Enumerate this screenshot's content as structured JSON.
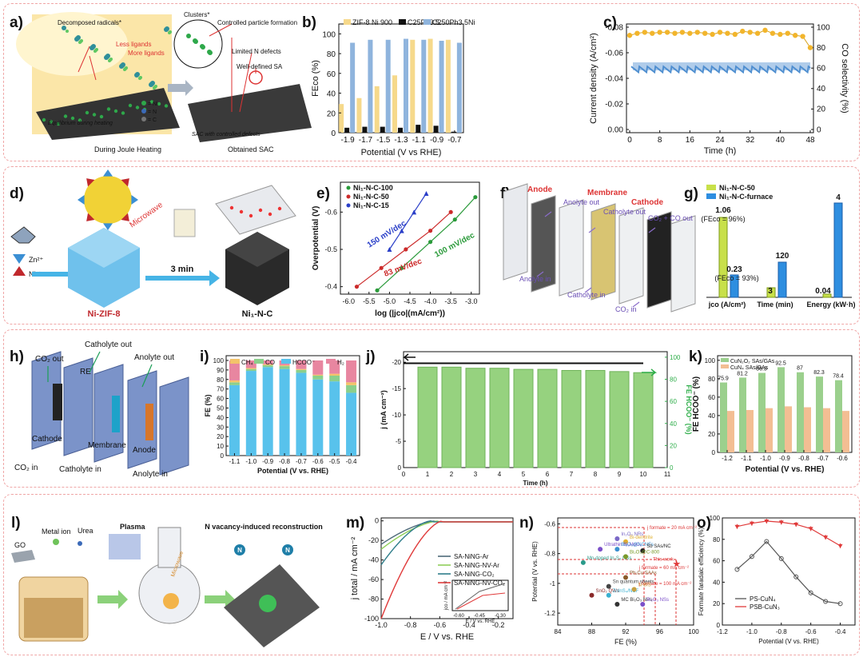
{
  "panel_labels": {
    "a": "a)",
    "b": "b)",
    "c": "c)",
    "d": "d)",
    "e": "e)",
    "f": "f)",
    "g": "g)",
    "h": "h)",
    "i": "i)",
    "j": "j)",
    "k": "k)",
    "l": "l)",
    "m": "m)",
    "n": "n)",
    "o": "o)"
  },
  "colors": {
    "yellow": "#f6d98b",
    "black": "#111111",
    "blue": "#8fb4dd",
    "gold": "#f2b52c",
    "cobalt": "#4f8fd0",
    "green": "#7cc36e",
    "salmon": "#f6b48a",
    "pinkred": "#e0707e",
    "cyan": "#5cc1e8",
    "red": "#e03c3c",
    "gray": "#666666"
  },
  "diagram_a": {
    "texts": [
      "Decomposed radicals*",
      "Clusters*",
      "Controlled particle formation",
      "Less ligands",
      "More ligands",
      "Limited N defects",
      "Well-defined SA",
      "= Ni",
      "= N",
      "= C",
      "Equilibrium during heating",
      "SAC with controlled defects",
      "During Joule Heating",
      "Obtained SAC"
    ]
  },
  "diagram_d": {
    "texts": [
      "Zn²⁺",
      "Ni²⁺",
      "Microwave",
      "3 min",
      "Ni-ZIF-8",
      "Ni₁-N-C"
    ]
  },
  "diagram_f": {
    "texts": [
      "Anode",
      "Anolyte out",
      "Membrane",
      "Catholyte out",
      "Cathode",
      "CO₂ + CO out",
      "Anolyte in",
      "Catholyte in",
      "CO₂ in"
    ]
  },
  "diagram_h": {
    "texts": [
      "CO₂ out",
      "Catholyte out",
      "RE",
      "Anolyte out",
      "Cathode",
      "Membrane",
      "Anode",
      "CO₂ in",
      "Catholyte in",
      "Anolyte in"
    ]
  },
  "diagram_l": {
    "texts": [
      "Metal ion",
      "Urea",
      "GO",
      "Plasma",
      "Microwave",
      "N vacancy-induced reconstruction",
      "N",
      "N"
    ]
  },
  "chart_data": [
    {
      "id": "b",
      "type": "bar",
      "categories": [
        "-1.9",
        "-1.7",
        "-1.5",
        "-1.3",
        "-1.1",
        "-0.9",
        "-0.7"
      ],
      "series": [
        {
          "name": "ZIF-8 Ni 900",
          "values": [
            29,
            35,
            47,
            58,
            94,
            95,
            94
          ]
        },
        {
          "name": "C25Ph3.5",
          "values": [
            5,
            6,
            6,
            5,
            8,
            7,
            1
          ]
        },
        {
          "name": "C250Ph3.5Ni",
          "values": [
            91,
            94,
            94,
            95,
            94,
            93,
            91
          ]
        }
      ],
      "xlabel": "Potential (V vs RHE)",
      "ylabel": "FEco (%)",
      "ylim": [
        0,
        110
      ],
      "yticks": [
        "0",
        "20",
        "40",
        "60",
        "80",
        "100"
      ],
      "legend": "top"
    },
    {
      "id": "c",
      "type": "line",
      "xlabel": "Time (h)",
      "ylabel": "Current density (A/cm²)",
      "ylabel2": "CO selectivity (%)",
      "xticks": [
        "0",
        "8",
        "16",
        "24",
        "32",
        "40",
        "48"
      ],
      "yticks": [
        "-0.08",
        "-0.06",
        "-0.04",
        "-0.02",
        "0.00"
      ],
      "yticks2": [
        "0",
        "20",
        "40",
        "60",
        "80",
        "100"
      ],
      "selectivity_x": [
        0,
        2,
        4,
        6,
        8,
        10,
        12,
        14,
        16,
        18,
        20,
        22,
        24,
        26,
        28,
        30,
        32,
        34,
        36,
        38,
        40,
        42,
        44,
        46,
        48
      ],
      "selectivity": [
        92,
        94,
        95,
        94,
        95,
        95,
        94,
        95,
        94,
        95,
        94,
        93,
        95,
        94,
        93,
        96,
        95,
        94,
        97,
        94,
        93,
        94,
        92,
        91,
        80
      ],
      "current_mean": -0.047
    },
    {
      "id": "e",
      "type": "line",
      "xlabel": "log (|jco|(mA/cm²))",
      "ylabel": "Overpotential (V)",
      "xticks": [
        "-6.0",
        "-5.5",
        "-5.0",
        "-4.5",
        "-4.0",
        "-3.5",
        "-3.0"
      ],
      "yticks": [
        "-0.4",
        "-0.5",
        "-0.6"
      ],
      "xlim": [
        -6.2,
        -2.8
      ],
      "ylim": [
        -0.38,
        -0.68
      ],
      "series": [
        {
          "name": "Ni₁-N-C-100",
          "x": [
            -5.3,
            -4.7,
            -4.0,
            -3.4,
            -2.9
          ],
          "y": [
            -0.39,
            -0.45,
            -0.52,
            -0.58,
            -0.64
          ],
          "label": "100 mV/dec"
        },
        {
          "name": "Ni₁-N-C-50",
          "x": [
            -5.8,
            -5.2,
            -4.6,
            -4.0,
            -3.5
          ],
          "y": [
            -0.4,
            -0.45,
            -0.5,
            -0.55,
            -0.6
          ],
          "label": "83 mV/dec"
        },
        {
          "name": "Ni₁-N-C-15",
          "x": [
            -5.0,
            -4.7,
            -4.4,
            -4.1
          ],
          "y": [
            -0.5,
            -0.55,
            -0.6,
            -0.65
          ],
          "label": "150 mV/dec"
        }
      ]
    },
    {
      "id": "g",
      "type": "bar",
      "categories": [
        "jco (A/cm²)",
        "Time (min)",
        "Energy (kW·h)"
      ],
      "series": [
        {
          "name": "Ni₁-N-C-50",
          "values": [
            1.06,
            3,
            0.04
          ]
        },
        {
          "name": "Ni₁-N-C-furnace",
          "values": [
            0.23,
            120,
            4
          ]
        }
      ],
      "annotations": [
        "1.06",
        "(FEco = 96%)",
        "0.23",
        "(FEco = 93%)",
        "120",
        "3",
        "0.04",
        "4"
      ]
    },
    {
      "id": "i",
      "type": "bar",
      "stacked": true,
      "categories": [
        "-1.1",
        "-1.0",
        "-0.9",
        "-0.8",
        "-0.7",
        "-0.6",
        "-0.5",
        "-0.4"
      ],
      "series": [
        {
          "name": "CH₄",
          "values": [
            2,
            1,
            1,
            1,
            1,
            1,
            2,
            3
          ]
        },
        {
          "name": "CO",
          "values": [
            3,
            2,
            2,
            3,
            3,
            4,
            6,
            8
          ]
        },
        {
          "name": "HCOO⁻",
          "values": [
            74,
            89,
            93,
            91,
            87,
            80,
            78,
            66
          ]
        },
        {
          "name": "H₂",
          "values": [
            21,
            8,
            4,
            5,
            9,
            15,
            14,
            23
          ]
        }
      ],
      "xlabel": "Potential (V vs. RHE)",
      "ylabel": "FE (%)",
      "ylim": [
        0,
        105
      ],
      "yticks": [
        "0",
        "10",
        "20",
        "30",
        "40",
        "50",
        "60",
        "70",
        "80",
        "90",
        "100"
      ]
    },
    {
      "id": "j",
      "type": "bar",
      "categories": [
        "1",
        "2",
        "3",
        "4",
        "5",
        "6",
        "7",
        "8",
        "9",
        "10"
      ],
      "xticks": [
        "0",
        "1",
        "2",
        "3",
        "4",
        "5",
        "6",
        "7",
        "8",
        "9",
        "10",
        "11"
      ],
      "series": [
        {
          "name": "FE HCOO⁻",
          "values": [
            91,
            91,
            90,
            90,
            89,
            89,
            88,
            88,
            87,
            86
          ]
        }
      ],
      "current": -19.8,
      "xlabel": "Time (h)",
      "ylabel": "j (mA cm⁻²)",
      "ylabel2": "FE HCOO⁻ (%)",
      "yticks": [
        "0",
        "-5",
        "-10",
        "-15",
        "-20"
      ],
      "yticks2": [
        "0",
        "20",
        "40",
        "60",
        "80",
        "100"
      ]
    },
    {
      "id": "k",
      "type": "bar",
      "categories": [
        "-1.2",
        "-1.1",
        "-1.0",
        "-0.9",
        "-0.8",
        "-0.7",
        "-0.6"
      ],
      "series": [
        {
          "name": "CuN₂O₂ SAs/GAs",
          "values": [
            75.9,
            81.2,
            86.3,
            92.5,
            87,
            82.3,
            78.4
          ]
        },
        {
          "name": "CuN₄ SAs/GAs",
          "values": [
            45,
            46,
            48,
            50,
            49,
            48,
            45
          ]
        }
      ],
      "labels": [
        "75.9",
        "81.2",
        "86.3",
        "92.5",
        "87",
        "82.3",
        "78.4"
      ],
      "xlabel": "Potential (V vs. RHE)",
      "ylabel": "FE HCOO⁻ (%)",
      "ylim": [
        0,
        105
      ],
      "yticks": [
        "0",
        "20",
        "40",
        "60",
        "80",
        "100"
      ]
    },
    {
      "id": "m",
      "type": "line",
      "xlabel": "E / V vs. RHE",
      "ylabel": "j total / mA cm⁻²",
      "xticks": [
        "-1.0",
        "-0.8",
        "-0.6",
        "-0.4",
        "-0.2"
      ],
      "yticks": [
        "0",
        "-20",
        "-40",
        "-60",
        "-80",
        "-100"
      ],
      "xlim": [
        -1.0,
        -0.1
      ],
      "ylim": [
        -100,
        3
      ],
      "series": [
        {
          "name": "SA-NiNG-Ar",
          "onset": -0.62,
          "end": -24
        },
        {
          "name": "SA-NiNG-NV-Ar",
          "onset": -0.6,
          "end": -29
        },
        {
          "name": "SA-NiNG-CO₂",
          "onset": -0.66,
          "end": -45
        },
        {
          "name": "SA-NiNG-NV-CO₂",
          "onset": -0.58,
          "end": -100
        }
      ],
      "inset": {
        "xlabel": "E / V vs. RHE",
        "ylabel": "jco / mA cm⁻²",
        "xticks": [
          "-0.60",
          "-0.45",
          "-0.30"
        ]
      }
    },
    {
      "id": "n",
      "type": "scatter",
      "xlabel": "FE (%)",
      "ylabel": "Potential (V vs. RHE)",
      "xticks": [
        "84",
        "88",
        "92",
        "96",
        "100"
      ],
      "yticks": [
        "-0.6",
        "-0.8",
        "-1",
        "-1.2"
      ],
      "xlim": [
        84,
        100
      ],
      "ylim": [
        -1.28,
        -0.56
      ],
      "points": [
        {
          "name": "In₂O₃ NRs",
          "x": 91,
          "y": -0.7
        },
        {
          "name": "Bi-dendrite",
          "x": 92,
          "y": -0.72
        },
        {
          "name": "Ultrathin Bi₂MoO₆",
          "x": 89,
          "y": -0.77
        },
        {
          "name": "Bi₂O₃@NCNFs",
          "x": 91,
          "y": -0.77
        },
        {
          "name": "Sb SAs/NC",
          "x": 94,
          "y": -0.78
        },
        {
          "name": "Mn-doped In₂S₃ NSs",
          "x": 87,
          "y": -0.86
        },
        {
          "name": "Bi₂O₃@C-800",
          "x": 92,
          "y": -0.82
        },
        {
          "name": "This work",
          "x": 98,
          "y": -0.87
        },
        {
          "name": "Pb₁Cu SAAs",
          "x": 92,
          "y": -0.96
        },
        {
          "name": "Sn quantum sheets",
          "x": 90,
          "y": -1.02
        },
        {
          "name": "SnO₂ QWs",
          "x": 88,
          "y": -1.08
        },
        {
          "name": "ZnInS₄/NCF",
          "x": 90,
          "y": -1.08
        },
        {
          "name": "N-BIS",
          "x": 93,
          "y": -1.04
        },
        {
          "name": "MC Bi₂O₃ NPs",
          "x": 91,
          "y": -1.14
        },
        {
          "name": "Bi₂O₃ NSs",
          "x": 94,
          "y": -1.14
        }
      ],
      "annotations": [
        "j formate = 20 mA cm⁻²",
        "j formate = 60 mA cm⁻²",
        "j formate = 100 mA cm⁻²"
      ]
    },
    {
      "id": "o",
      "type": "line",
      "xlabel": "Potential (V vs. RHE)",
      "ylabel": "Formate faradaic efficiency (%)",
      "xticks": [
        "-1.2",
        "-1.0",
        "-0.8",
        "-0.6",
        "-0.4"
      ],
      "yticks": [
        "0",
        "20",
        "40",
        "60",
        "80",
        "100"
      ],
      "xlim": [
        -1.2,
        -0.3
      ],
      "ylim": [
        0,
        100
      ],
      "series": [
        {
          "name": "PS-CuN₄",
          "x": [
            -1.1,
            -1.0,
            -0.9,
            -0.8,
            -0.7,
            -0.6,
            -0.5,
            -0.4
          ],
          "y": [
            52,
            64,
            78,
            62,
            45,
            30,
            22,
            20
          ]
        },
        {
          "name": "PSB-CuN₃",
          "x": [
            -1.1,
            -1.0,
            -0.9,
            -0.8,
            -0.7,
            -0.6,
            -0.5,
            -0.4
          ],
          "y": [
            92,
            95,
            97,
            96,
            94,
            90,
            82,
            74
          ]
        }
      ]
    }
  ]
}
